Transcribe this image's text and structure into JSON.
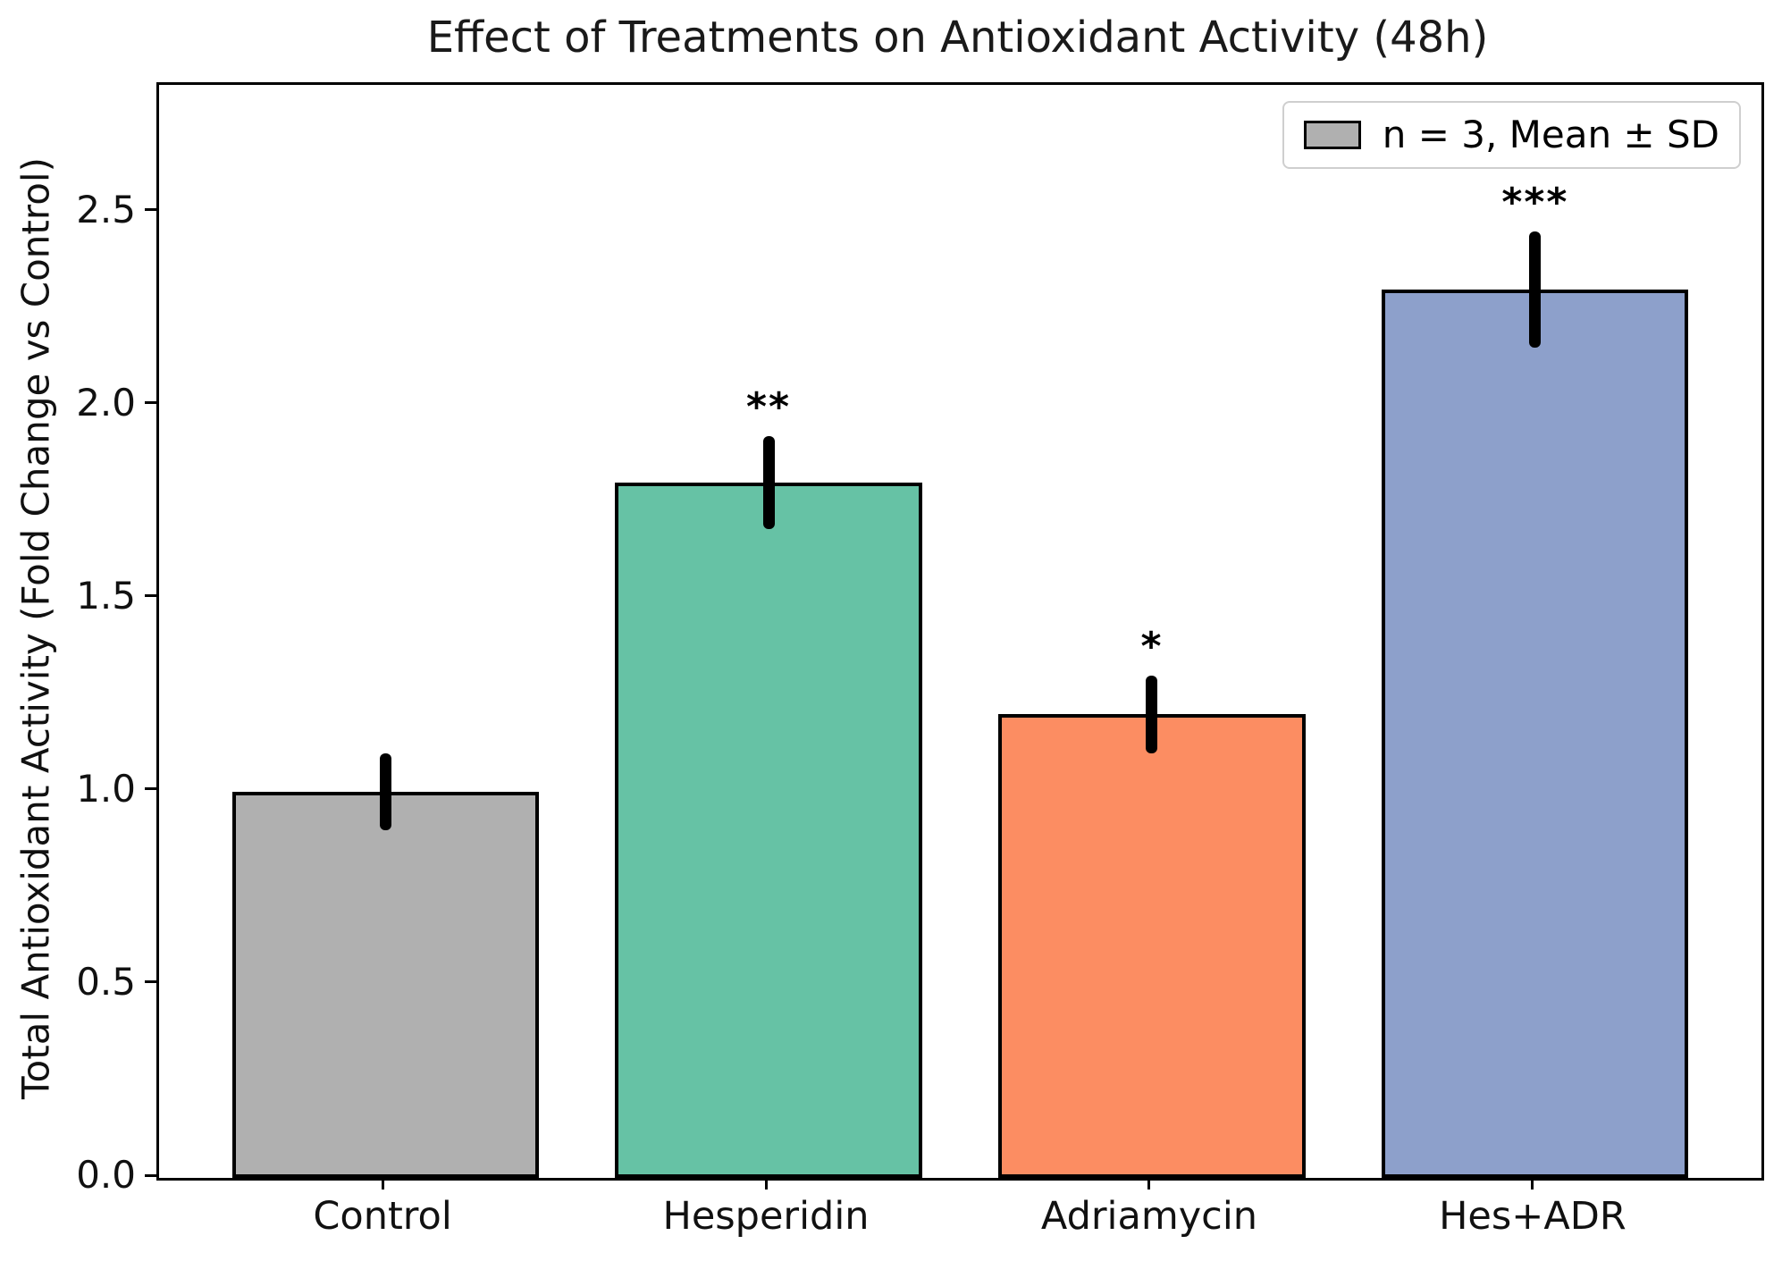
{
  "figure_title": "Effect of Treatments on Antioxidant Activity (48h)",
  "chart_data": {
    "type": "bar",
    "title": "Effect of Treatments on Antioxidant Activity (48h)",
    "xlabel": "",
    "ylabel": "Total Antioxidant Activity (Fold Change vs Control)",
    "categories": [
      "Control",
      "Hesperidin",
      "Adriamycin",
      "Hes+ADR"
    ],
    "values": [
      1.0,
      1.8,
      1.2,
      2.3
    ],
    "errors_sd": [
      0.1,
      0.12,
      0.1,
      0.15
    ],
    "significance": [
      "",
      "**",
      "*",
      "***"
    ],
    "bar_colors": [
      "#b0b0b0",
      "#66c2a5",
      "#fc8d62",
      "#8da0cb"
    ],
    "bar_edge_color": "#000000",
    "error_bar_color": "#000000",
    "ytick_labels": [
      "0.0",
      "0.5",
      "1.0",
      "1.5",
      "2.0",
      "2.5"
    ],
    "yticks": [
      0.0,
      0.5,
      1.0,
      1.5,
      2.0,
      2.5
    ],
    "ylim": [
      0,
      2.83
    ],
    "xlim": [
      -0.59,
      3.59
    ],
    "bar_width_units": 0.8,
    "grid": false,
    "legend": {
      "label": "n = 3, Mean ± SD",
      "position": "upper right",
      "swatch_color": "#b0b0b0",
      "swatch_edge_color": "#000000"
    }
  }
}
